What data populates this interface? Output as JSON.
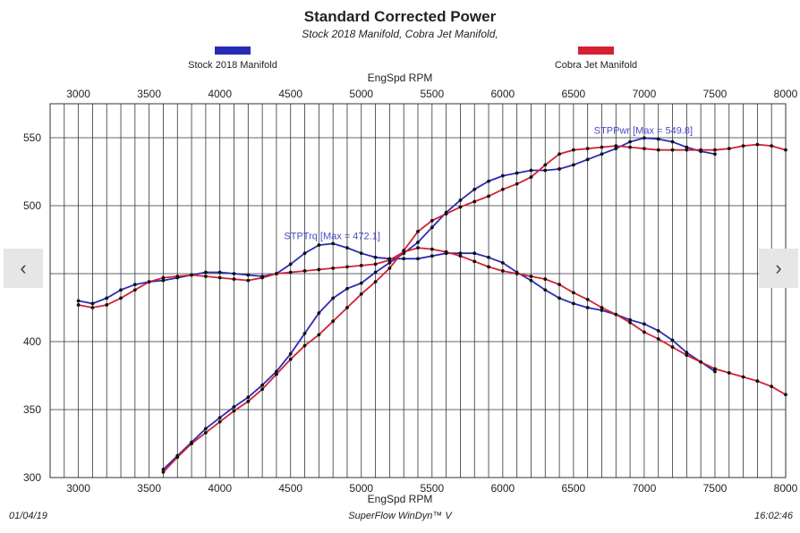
{
  "chart_data": {
    "type": "line",
    "title": "Standard Corrected Power",
    "subtitle": "Stock 2018 Manifold, Cobra Jet Manifold,",
    "xlabel": "EngSpd RPM",
    "xlim": [
      2800,
      8000
    ],
    "ylim": [
      300,
      575
    ],
    "x_ticks": [
      3000,
      3500,
      4000,
      4500,
      5000,
      5500,
      6000,
      6500,
      7000,
      7500,
      8000
    ],
    "y_ticks": [
      300,
      350,
      400,
      450,
      500,
      550
    ],
    "grid": true,
    "legend_position": "top",
    "series": [
      {
        "name": "Stock 2018 Manifold",
        "color": "#2a2ab8",
        "measure": "STPTrq",
        "points": [
          [
            3000,
            430
          ],
          [
            3100,
            428
          ],
          [
            3200,
            432
          ],
          [
            3300,
            438
          ],
          [
            3400,
            442
          ],
          [
            3500,
            444
          ],
          [
            3600,
            445
          ],
          [
            3700,
            447
          ],
          [
            3800,
            449
          ],
          [
            3900,
            451
          ],
          [
            4000,
            451
          ],
          [
            4100,
            450
          ],
          [
            4200,
            449
          ],
          [
            4300,
            448
          ],
          [
            4400,
            450
          ],
          [
            4500,
            457
          ],
          [
            4600,
            465
          ],
          [
            4700,
            471
          ],
          [
            4800,
            472.1
          ],
          [
            4900,
            469
          ],
          [
            5000,
            465
          ],
          [
            5100,
            462
          ],
          [
            5200,
            461
          ],
          [
            5300,
            461
          ],
          [
            5400,
            461
          ],
          [
            5500,
            463
          ],
          [
            5600,
            465
          ],
          [
            5700,
            465
          ],
          [
            5800,
            465
          ],
          [
            5900,
            462
          ],
          [
            6000,
            458
          ],
          [
            6100,
            451
          ],
          [
            6200,
            445
          ],
          [
            6300,
            438
          ],
          [
            6400,
            432
          ],
          [
            6500,
            428
          ],
          [
            6600,
            425
          ],
          [
            6700,
            423
          ],
          [
            6800,
            420
          ],
          [
            6900,
            416
          ],
          [
            7000,
            413
          ],
          [
            7100,
            408
          ],
          [
            7200,
            401
          ],
          [
            7300,
            392
          ],
          [
            7400,
            385
          ],
          [
            7500,
            378
          ]
        ]
      },
      {
        "name": "Stock 2018 Manifold",
        "color": "#2a2ab8",
        "measure": "STPPwr",
        "points": [
          [
            3600,
            306
          ],
          [
            3700,
            316
          ],
          [
            3800,
            326
          ],
          [
            3900,
            336
          ],
          [
            4000,
            344
          ],
          [
            4100,
            352
          ],
          [
            4200,
            359
          ],
          [
            4300,
            368
          ],
          [
            4400,
            378
          ],
          [
            4500,
            391
          ],
          [
            4600,
            406
          ],
          [
            4700,
            421
          ],
          [
            4800,
            432
          ],
          [
            4900,
            439
          ],
          [
            5000,
            443
          ],
          [
            5100,
            451
          ],
          [
            5200,
            458
          ],
          [
            5300,
            465
          ],
          [
            5400,
            473
          ],
          [
            5500,
            484
          ],
          [
            5600,
            495
          ],
          [
            5700,
            504
          ],
          [
            5800,
            512
          ],
          [
            5900,
            518
          ],
          [
            6000,
            522
          ],
          [
            6100,
            524
          ],
          [
            6200,
            526
          ],
          [
            6300,
            526
          ],
          [
            6400,
            527
          ],
          [
            6500,
            530
          ],
          [
            6600,
            534
          ],
          [
            6700,
            538
          ],
          [
            6800,
            542
          ],
          [
            6900,
            547
          ],
          [
            7000,
            549.8
          ],
          [
            7100,
            549
          ],
          [
            7200,
            547
          ],
          [
            7300,
            543
          ],
          [
            7400,
            540
          ],
          [
            7500,
            538
          ]
        ]
      },
      {
        "name": "Cobra Jet Manifold",
        "color": "#d42030",
        "measure": "STPTrq",
        "points": [
          [
            3000,
            427
          ],
          [
            3100,
            425
          ],
          [
            3200,
            427
          ],
          [
            3300,
            432
          ],
          [
            3400,
            438
          ],
          [
            3500,
            444
          ],
          [
            3600,
            447
          ],
          [
            3700,
            448
          ],
          [
            3800,
            449
          ],
          [
            3900,
            448
          ],
          [
            4000,
            447
          ],
          [
            4100,
            446
          ],
          [
            4200,
            445
          ],
          [
            4300,
            447
          ],
          [
            4400,
            450
          ],
          [
            4500,
            451
          ],
          [
            4600,
            452
          ],
          [
            4700,
            453
          ],
          [
            4800,
            454
          ],
          [
            4900,
            455
          ],
          [
            5000,
            456
          ],
          [
            5100,
            457
          ],
          [
            5200,
            460
          ],
          [
            5300,
            466
          ],
          [
            5400,
            469
          ],
          [
            5500,
            468
          ],
          [
            5600,
            466
          ],
          [
            5700,
            463
          ],
          [
            5800,
            459
          ],
          [
            5900,
            455
          ],
          [
            6000,
            452
          ],
          [
            6100,
            450
          ],
          [
            6200,
            448
          ],
          [
            6300,
            446
          ],
          [
            6400,
            442
          ],
          [
            6500,
            436
          ],
          [
            6600,
            431
          ],
          [
            6700,
            425
          ],
          [
            6800,
            420
          ],
          [
            6900,
            414
          ],
          [
            7000,
            407
          ],
          [
            7100,
            402
          ],
          [
            7200,
            396
          ],
          [
            7300,
            390
          ],
          [
            7400,
            385
          ],
          [
            7500,
            380
          ],
          [
            7600,
            377
          ],
          [
            7700,
            374
          ],
          [
            7800,
            371
          ],
          [
            7900,
            367
          ],
          [
            8000,
            361
          ],
          [
            8100,
            354
          ]
        ]
      },
      {
        "name": "Cobra Jet Manifold",
        "color": "#d42030",
        "measure": "STPPwr",
        "points": [
          [
            3600,
            304
          ],
          [
            3700,
            315
          ],
          [
            3800,
            325
          ],
          [
            3900,
            333
          ],
          [
            4000,
            341
          ],
          [
            4100,
            349
          ],
          [
            4200,
            356
          ],
          [
            4300,
            365
          ],
          [
            4400,
            376
          ],
          [
            4500,
            387
          ],
          [
            4600,
            397
          ],
          [
            4700,
            405
          ],
          [
            4800,
            415
          ],
          [
            4900,
            425
          ],
          [
            5000,
            435
          ],
          [
            5100,
            444
          ],
          [
            5200,
            454
          ],
          [
            5300,
            467
          ],
          [
            5400,
            481
          ],
          [
            5500,
            489
          ],
          [
            5600,
            494
          ],
          [
            5700,
            499
          ],
          [
            5800,
            503
          ],
          [
            5900,
            507
          ],
          [
            6000,
            512
          ],
          [
            6100,
            516
          ],
          [
            6200,
            521
          ],
          [
            6300,
            530
          ],
          [
            6400,
            538
          ],
          [
            6500,
            541
          ],
          [
            6600,
            542
          ],
          [
            6700,
            543
          ],
          [
            6800,
            544
          ],
          [
            6900,
            543
          ],
          [
            7000,
            542
          ],
          [
            7100,
            541
          ],
          [
            7200,
            541
          ],
          [
            7300,
            541
          ],
          [
            7400,
            541
          ],
          [
            7500,
            541
          ],
          [
            7600,
            542
          ],
          [
            7700,
            544
          ],
          [
            7800,
            545
          ],
          [
            7900,
            544
          ],
          [
            8000,
            541
          ]
        ]
      }
    ],
    "annotations": [
      {
        "text": "STPTrq [Max = 472.1]",
        "x": 4800,
        "y": 472.1
      },
      {
        "text": "STPPwr [Max = 549.8]",
        "x": 7000,
        "y": 549.8
      }
    ]
  },
  "legend": [
    {
      "label": "Stock 2018 Manifold",
      "color": "#2a2ab8"
    },
    {
      "label": "Cobra Jet Manifold",
      "color": "#d42030"
    }
  ],
  "footer": {
    "date": "01/04/19",
    "software": "SuperFlow WinDyn™ V",
    "time": "16:02:46"
  },
  "nav": {
    "prev": "‹",
    "next": "›"
  }
}
